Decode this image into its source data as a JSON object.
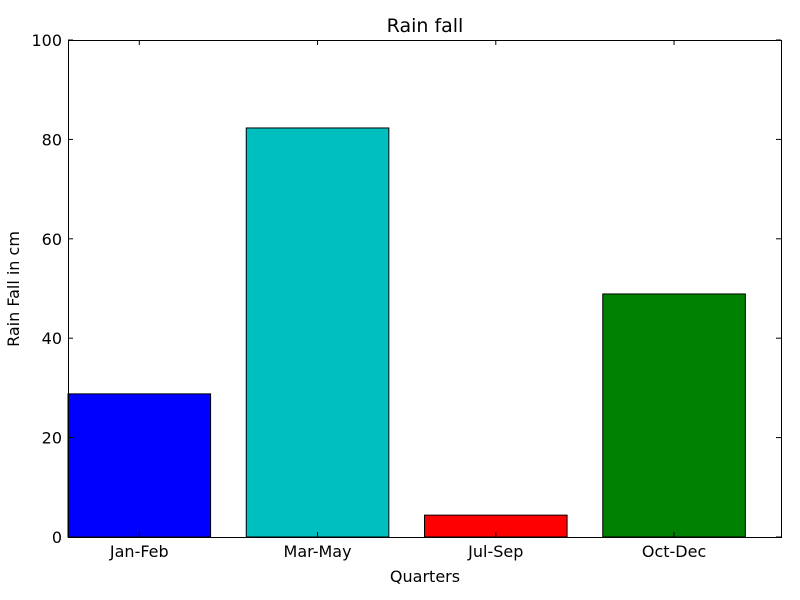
{
  "chart_data": {
    "type": "bar",
    "title": "Rain fall",
    "xlabel": "Quarters",
    "ylabel": "Rain Fall in cm",
    "categories": [
      "Jan-Feb",
      "Mar-May",
      "Jul-Sep",
      "Oct-Dec"
    ],
    "values": [
      28.8,
      82.3,
      4.4,
      48.9
    ],
    "colors": [
      "#0000ff",
      "#00bfbf",
      "#ff0000",
      "#008000"
    ],
    "ylim": [
      0,
      100
    ],
    "yticks": [
      0,
      20,
      40,
      60,
      80,
      100
    ],
    "grid": false,
    "legend": "none"
  }
}
